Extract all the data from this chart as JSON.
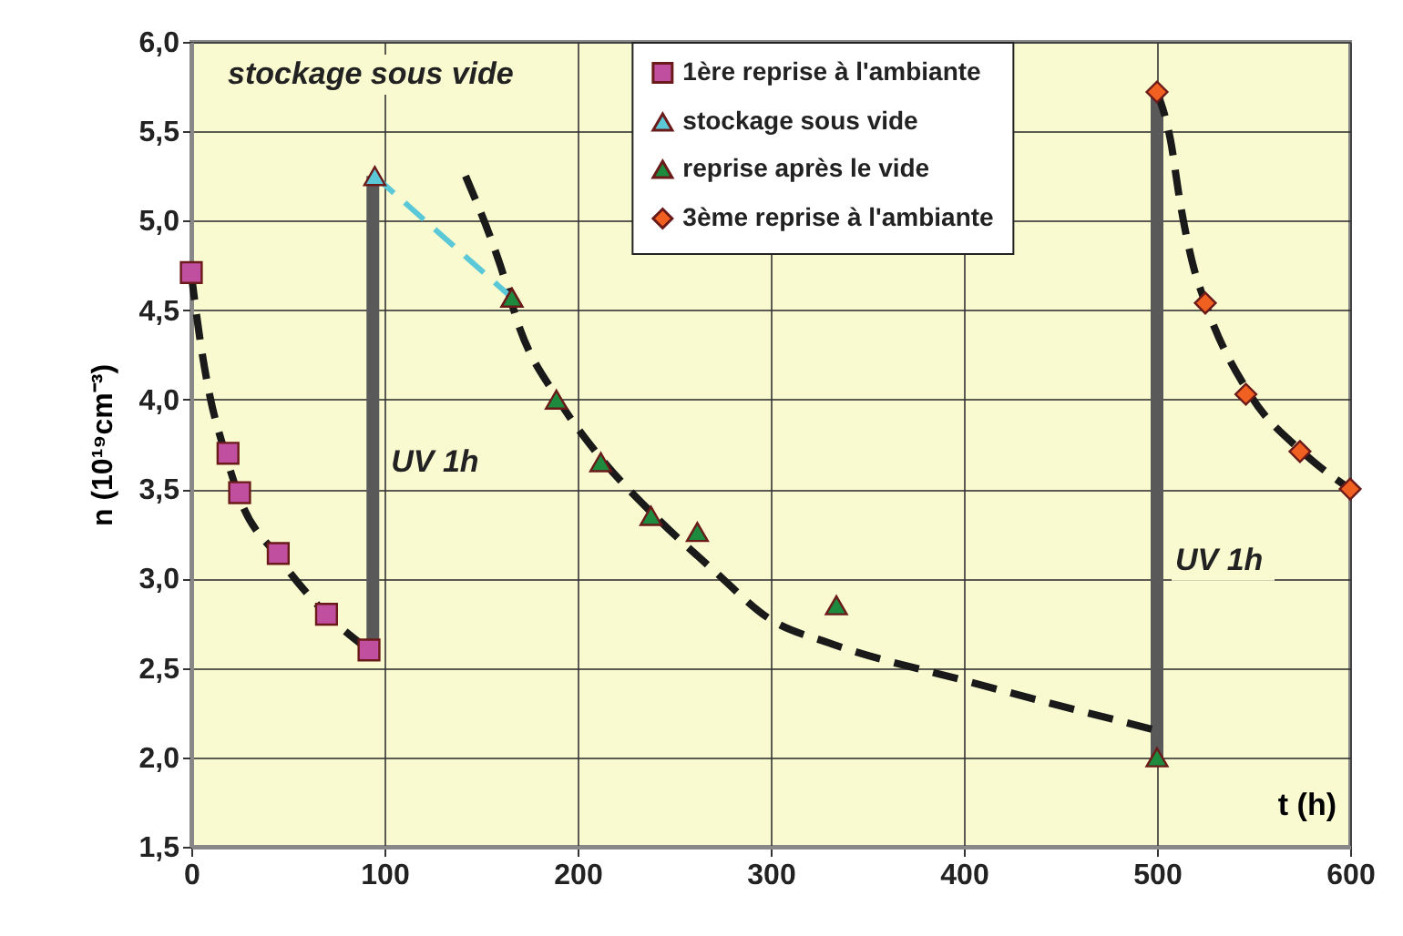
{
  "chart_data": {
    "type": "scatter",
    "xlabel": "t (h)",
    "ylabel": "n (10¹⁹cm⁻³)",
    "xlim": [
      0,
      600
    ],
    "xticks": [
      0,
      100,
      200,
      300,
      400,
      500,
      600
    ],
    "ylim": [
      1.5,
      6.0
    ],
    "yticks": [
      {
        "value": 1.5,
        "label": "1,5"
      },
      {
        "value": 2,
        "label": "2,0"
      },
      {
        "value": 2.5,
        "label": "2,5"
      },
      {
        "value": 3,
        "label": "3,0"
      },
      {
        "value": 3.5,
        "label": "3,5"
      },
      {
        "value": 4,
        "label": "4,0"
      },
      {
        "value": 4.5,
        "label": "4,5"
      },
      {
        "value": 5,
        "label": "5,0"
      },
      {
        "value": 5.5,
        "label": "5,5"
      },
      {
        "value": 6,
        "label": "6,0"
      }
    ],
    "grid": true,
    "legend": "top right",
    "series": [
      {
        "type": "line",
        "color": "#595959",
        "x": [
          94,
          94
        ],
        "values": [
          2.6,
          5.25
        ],
        "line_style": "solid",
        "marker": "none"
      },
      {
        "type": "line",
        "color": "#595959",
        "x": [
          500,
          500
        ],
        "values": [
          2.0,
          5.72
        ],
        "line_style": "solid",
        "marker": "none"
      },
      {
        "type": "line",
        "color": "#1a1a1a",
        "x": [
          0,
          5,
          10,
          17,
          25,
          45,
          70,
          92
        ],
        "values": [
          4.7,
          4.3,
          4.0,
          3.72,
          3.45,
          3.12,
          2.8,
          2.6
        ],
        "line_style": "dashed",
        "marker": "none"
      },
      {
        "type": "line",
        "color": "#1a1a1a",
        "x": [
          142,
          160,
          170,
          190,
          210,
          240,
          270,
          300,
          330,
          400,
          500
        ],
        "values": [
          5.25,
          4.75,
          4.4,
          4.0,
          3.7,
          3.35,
          3.05,
          2.77,
          2.64,
          2.43,
          2.15
        ],
        "line_style": "dashed",
        "marker": "none"
      },
      {
        "type": "line",
        "color": "#1a1a1a",
        "x": [
          500,
          507,
          512,
          518,
          525,
          548,
          575,
          600
        ],
        "values": [
          5.72,
          5.45,
          5.1,
          4.78,
          4.54,
          4.03,
          3.71,
          3.5
        ],
        "line_style": "dashed",
        "marker": "none"
      },
      {
        "name": "1ère reprise à l'ambiante",
        "color": "#c0509f",
        "x": [
          0,
          19,
          25,
          45,
          70,
          92
        ],
        "values": [
          4.71,
          3.7,
          3.48,
          3.14,
          2.8,
          2.6
        ],
        "marker": "square"
      },
      {
        "name": "stockage sous vide",
        "type": "line",
        "color": "#5bc8d8",
        "x": [
          95,
          166
        ],
        "values": [
          5.25,
          4.57
        ],
        "line_style": "dashed",
        "marker": "triangle"
      },
      {
        "name": "reprise après le vide",
        "color": "#1e8a3e",
        "x": [
          166,
          189,
          212,
          238,
          262,
          334,
          500
        ],
        "values": [
          4.57,
          4.0,
          3.65,
          3.35,
          3.26,
          2.85,
          2.0
        ],
        "marker": "triangle"
      },
      {
        "name": "3ème reprise à l'ambiante",
        "color": "#f06020",
        "x": [
          500,
          525,
          546,
          574,
          600
        ],
        "values": [
          5.72,
          4.54,
          4.03,
          3.71,
          3.5
        ],
        "marker": "diamond"
      }
    ],
    "annotations": [
      "stockage sous vide",
      {
        "text": "UV 1h",
        "x": 94,
        "y": 3.65
      },
      {
        "text": "UV 1h",
        "x": 500,
        "y": 3.1
      }
    ]
  }
}
